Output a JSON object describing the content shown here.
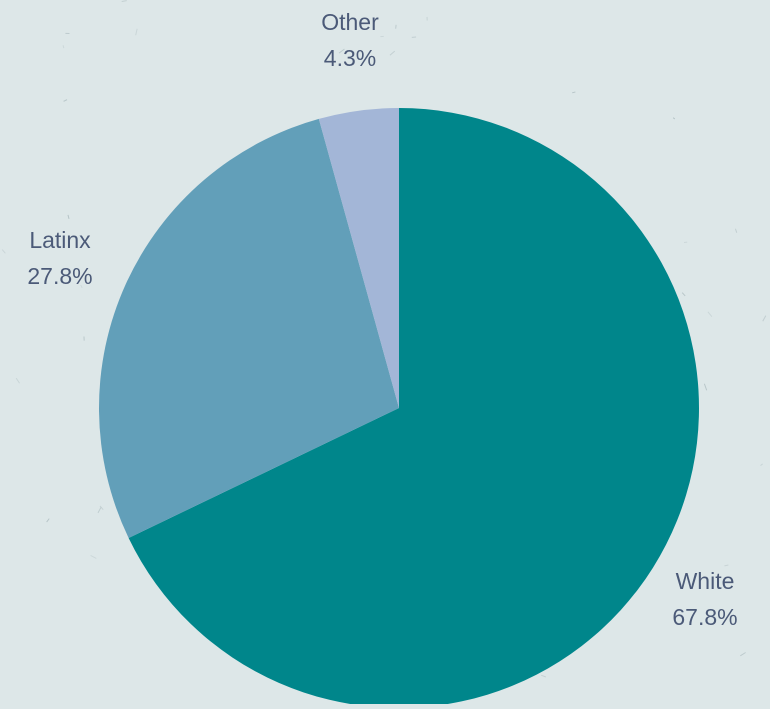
{
  "chart_data": {
    "type": "pie",
    "title": "",
    "slices": [
      {
        "label": "White",
        "value": 67.8,
        "display": "67.8%",
        "color": "#00868b"
      },
      {
        "label": "Latinx",
        "value": 27.8,
        "display": "27.8%",
        "color": "#629fb9"
      },
      {
        "label": "Other",
        "value": 4.3,
        "display": "4.3%",
        "color": "#a3b6d7"
      }
    ],
    "start_angle_deg": 0,
    "direction": "clockwise",
    "label_color": "#4b5a78",
    "background_color": "#dde7e8"
  }
}
